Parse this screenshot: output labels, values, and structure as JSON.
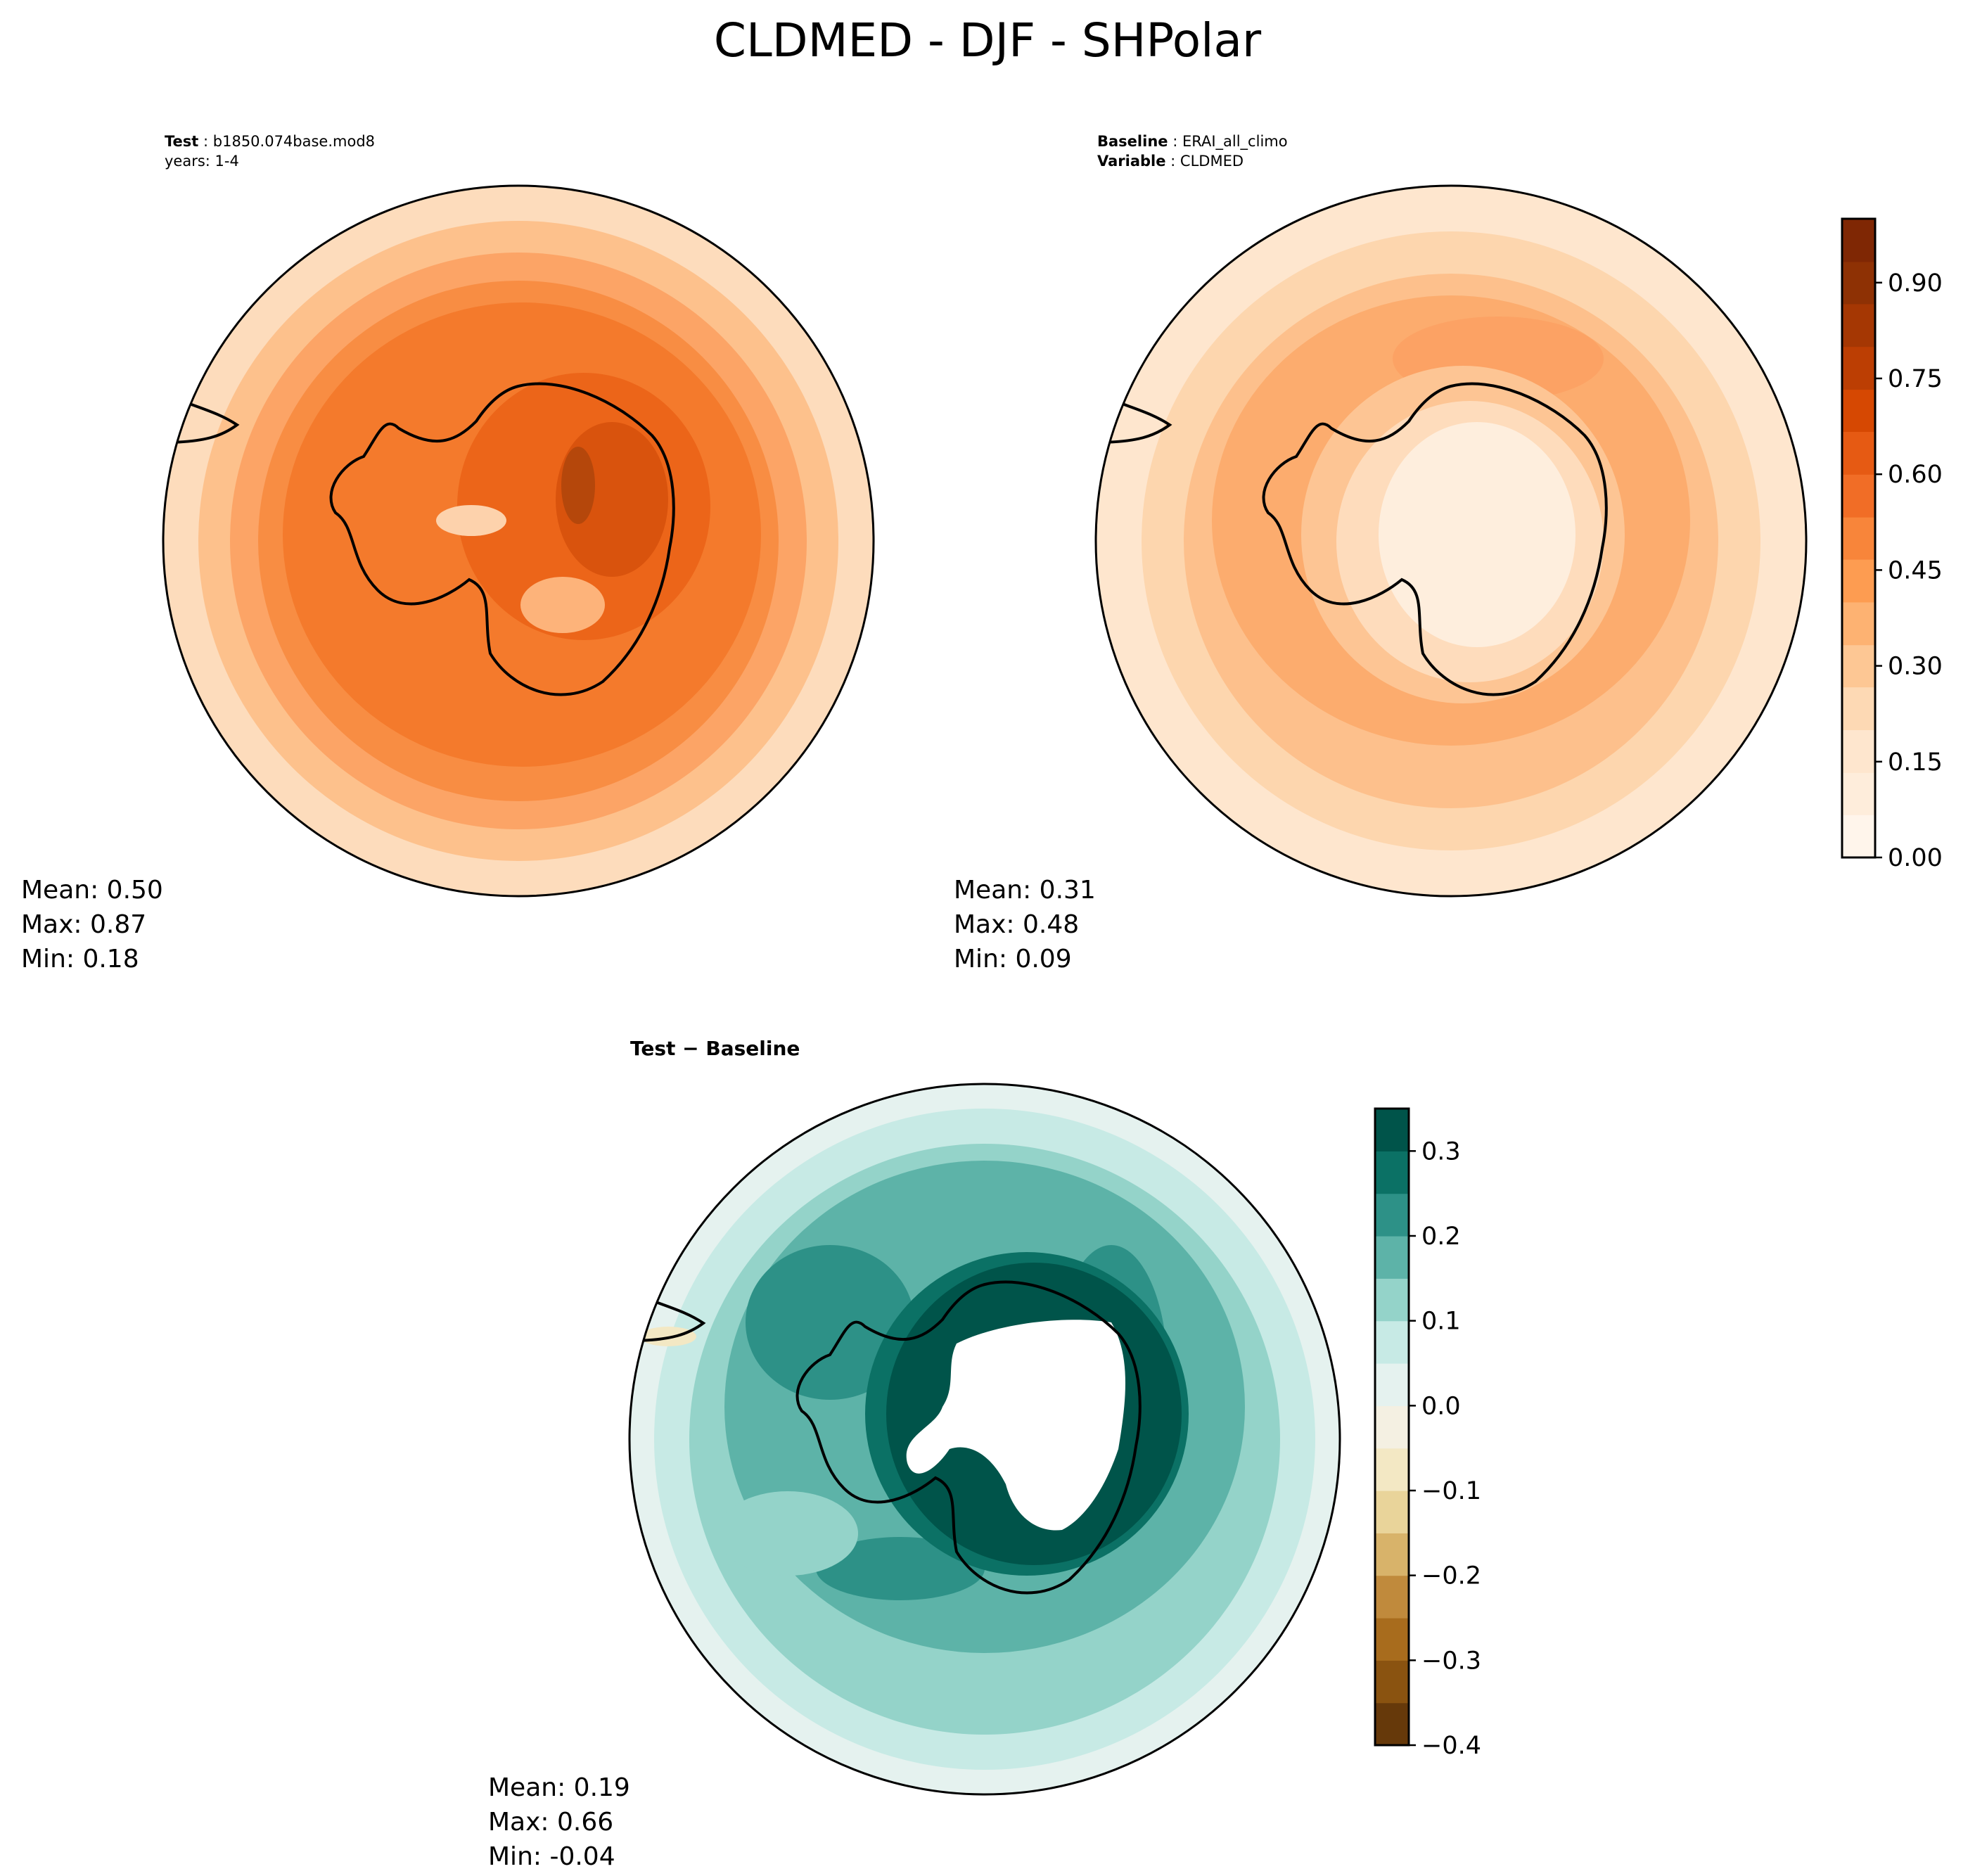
{
  "figure": {
    "title": "CLDMED - DJF - SHPolar"
  },
  "panels": {
    "test": {
      "label_key": "Test",
      "label_value": "b1850.074base.mod8",
      "years": "years: 1-4",
      "stats": {
        "mean": "Mean:  0.50",
        "max": "Max:  0.87",
        "min": "Min:  0.18"
      }
    },
    "baseline": {
      "label_key": "Baseline",
      "label_value": "ERAI_all_climo",
      "variable_key": "Variable",
      "variable_value": "CLDMED",
      "stats": {
        "mean": "Mean:  0.31",
        "max": "Max:  0.48",
        "min": "Min:  0.09"
      }
    },
    "diff": {
      "title": "Test − Baseline",
      "stats": {
        "mean": "Mean:  0.19",
        "max": "Max:  0.66",
        "min": "Min: -0.04"
      }
    }
  },
  "colorbars": {
    "oranges": {
      "colormap": "Oranges",
      "tick_labels": [
        "0.00",
        "0.15",
        "0.30",
        "0.45",
        "0.60",
        "0.75",
        "0.90"
      ],
      "colors": [
        "#fff5eb",
        "#feeddb",
        "#fee6ce",
        "#fdd9b4",
        "#fdc794",
        "#fdb272",
        "#fd9c51",
        "#f8853a",
        "#f16d26",
        "#e65a13",
        "#d64802",
        "#bc3e03",
        "#a53703",
        "#8e3104",
        "#7f2704"
      ]
    },
    "diverging": {
      "colormap": "BrBG",
      "tick_labels": [
        "−0.4",
        "−0.3",
        "−0.2",
        "−0.1",
        "0.0",
        "0.1",
        "0.2",
        "0.3"
      ],
      "colors": [
        "#66390a",
        "#8a5310",
        "#a86c1d",
        "#c08a3c",
        "#d8b36a",
        "#e9d49a",
        "#f3e8c4",
        "#f4f0e2",
        "#e5f2ef",
        "#c7eae5",
        "#94d3c9",
        "#5db3a8",
        "#2d9187",
        "#0b7165",
        "#00544a"
      ]
    }
  },
  "chart_data": [
    {
      "type": "heatmap",
      "name": "test",
      "projection": "south-polar-stereographic",
      "colorbar": "oranges",
      "mean": 0.5,
      "max": 0.87,
      "min": 0.18
    },
    {
      "type": "heatmap",
      "name": "baseline",
      "projection": "south-polar-stereographic",
      "colorbar": "oranges",
      "levels": [
        0.0,
        0.067,
        0.133,
        0.2,
        0.267,
        0.333,
        0.4,
        0.467,
        0.533,
        0.6,
        0.667,
        0.733,
        0.8,
        0.867,
        0.933,
        1.0
      ],
      "ticks": [
        0.0,
        0.15,
        0.3,
        0.45,
        0.6,
        0.75,
        0.9
      ],
      "mean": 0.31,
      "max": 0.48,
      "min": 0.09
    },
    {
      "type": "heatmap",
      "name": "diff",
      "projection": "south-polar-stereographic",
      "colorbar": "diverging",
      "levels": [
        -0.4,
        -0.35,
        -0.3,
        -0.25,
        -0.2,
        -0.15,
        -0.1,
        -0.05,
        0.0,
        0.05,
        0.1,
        0.15,
        0.2,
        0.25,
        0.3,
        0.35
      ],
      "ticks": [
        -0.4,
        -0.3,
        -0.2,
        -0.1,
        0.0,
        0.1,
        0.2,
        0.3
      ],
      "mean": 0.19,
      "max": 0.66,
      "min": -0.04
    }
  ]
}
